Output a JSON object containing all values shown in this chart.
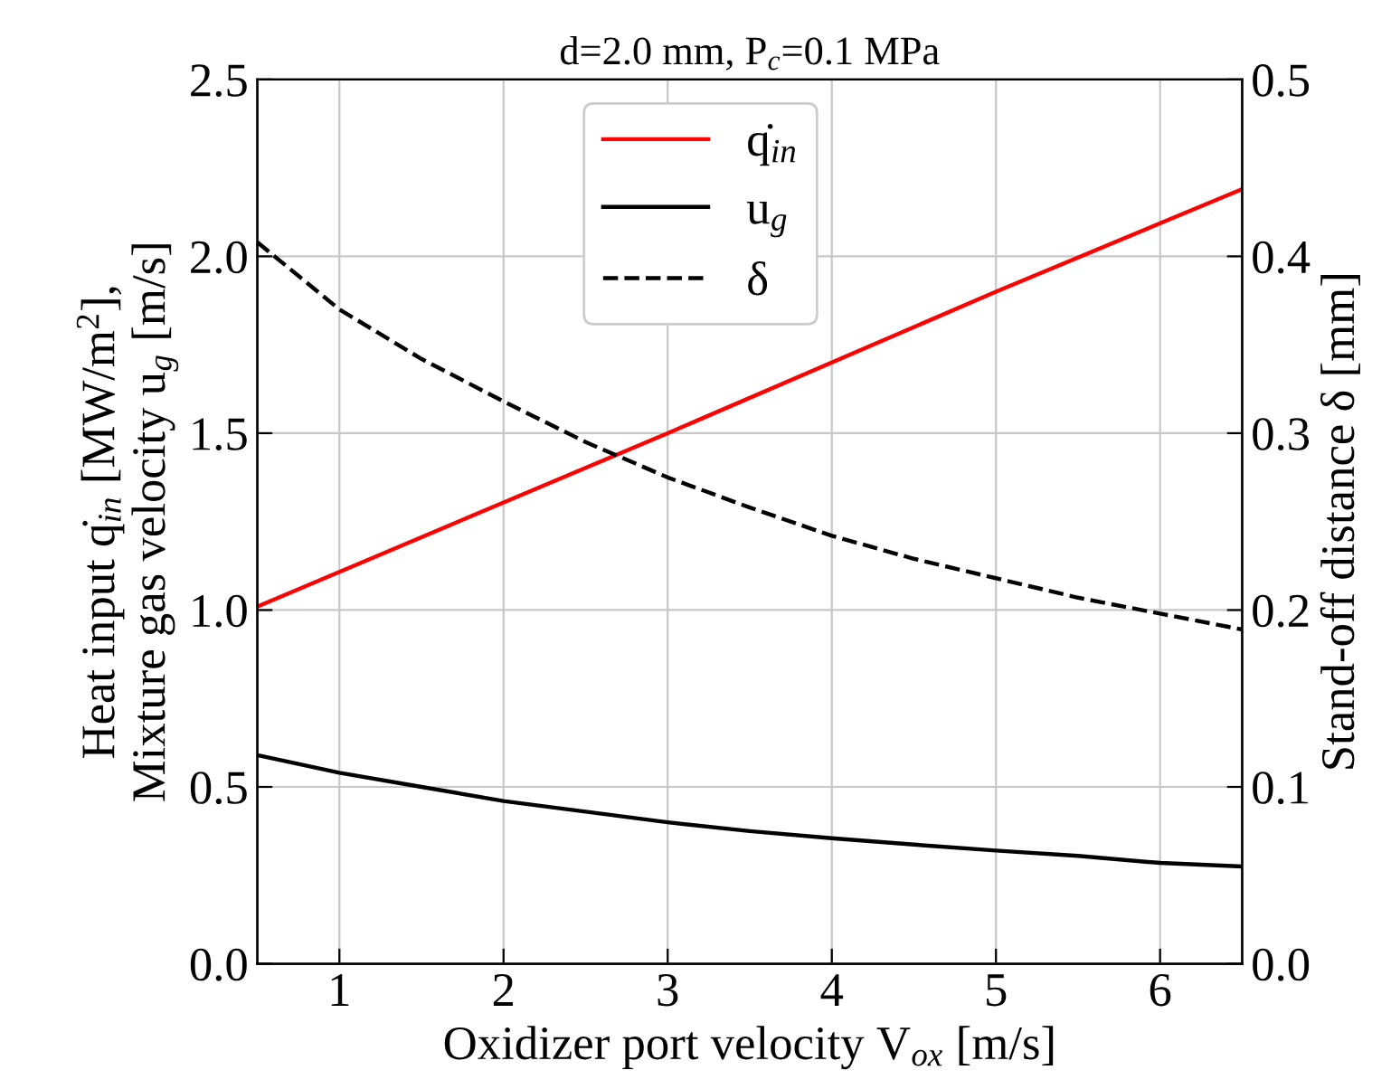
{
  "chart_data": {
    "type": "line",
    "title": "d=2.0 mm, P$_{c}$=0.1 MPa",
    "xlabel": "Oxidizer port velocity V$_{ox}$ [m/s]",
    "ylabel": "Heat input q̇$_{in}$ [MW/m$^{2}$],\nMixture gas velocity u$_{g}$ [m/s]",
    "y2label": "Stand-off distance δ [mm]",
    "series": [
      {
        "name": "q̇$_{in}$",
        "color": "#ff0000",
        "line_style": "solid",
        "x": [
          0.5,
          3,
          5,
          6.5
        ],
        "values": [
          1.01,
          1.5,
          1.9,
          2.19
        ]
      },
      {
        "name": "u$_{g}$",
        "color": "#000000",
        "line_style": "solid",
        "x": [
          0.5,
          1,
          1.5,
          2,
          2.5,
          3,
          3.5,
          4,
          4.5,
          5,
          5.5,
          6,
          6.5
        ],
        "values": [
          0.59,
          0.54,
          0.5,
          0.46,
          0.43,
          0.4,
          0.375,
          0.355,
          0.337,
          0.32,
          0.305,
          0.285,
          0.275
        ]
      },
      {
        "name": "δ",
        "color": "#000000",
        "line_style": "dashed",
        "axis": "y2",
        "x": [
          0.5,
          1,
          1.5,
          2,
          2.5,
          3,
          3.5,
          4,
          4.5,
          5,
          5.5,
          6,
          6.5
        ],
        "values": [
          0.408,
          0.37,
          0.342,
          0.318,
          0.295,
          0.275,
          0.258,
          0.242,
          0.229,
          0.218,
          0.207,
          0.198,
          0.189
        ]
      }
    ],
    "xlim": [
      0.5,
      6.5
    ],
    "xticks": [
      1,
      2,
      3,
      4,
      5,
      6
    ],
    "ylim": [
      0,
      2.5
    ],
    "yticks": [
      {
        "value": 0,
        "label": "0.0"
      },
      {
        "value": 0.5,
        "label": "0.5"
      },
      {
        "value": 1,
        "label": "1.0"
      },
      {
        "value": 1.5,
        "label": "1.5"
      },
      {
        "value": 2,
        "label": "2.0"
      },
      {
        "value": 2.5,
        "label": "2.5"
      }
    ],
    "y2lim": [
      0,
      0.5
    ],
    "y2ticks": [
      {
        "value": 0,
        "label": "0.0"
      },
      {
        "value": 0.1,
        "label": "0.1"
      },
      {
        "value": 0.2,
        "label": "0.2"
      },
      {
        "value": 0.3,
        "label": "0.3"
      },
      {
        "value": 0.4,
        "label": "0.4"
      },
      {
        "value": 0.5,
        "label": "0.5"
      }
    ],
    "grid": true,
    "legend": "top center"
  }
}
